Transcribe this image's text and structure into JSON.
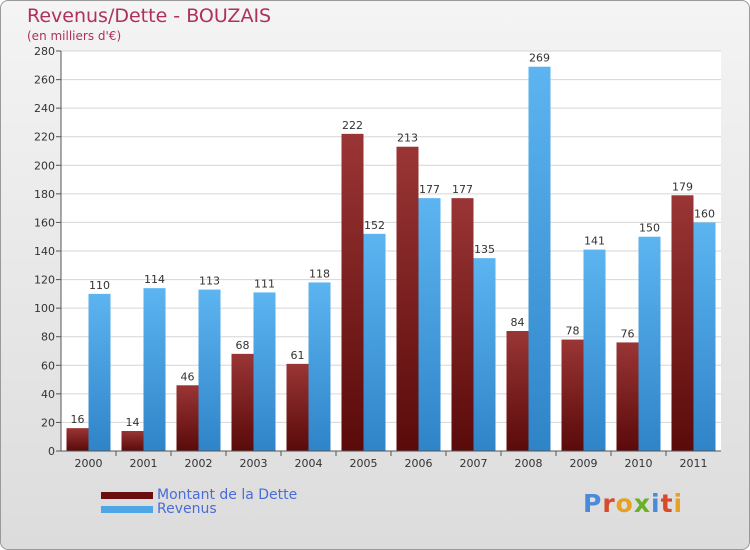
{
  "header": {
    "title": "Revenus/Dette - BOUZAIS",
    "subtitle": "(en milliers d'€)"
  },
  "colors": {
    "dette": "#7a1c1c",
    "revenus": "#4ea6e6"
  },
  "chart_data": {
    "type": "bar",
    "categories": [
      "2000",
      "2001",
      "2002",
      "2003",
      "2004",
      "2005",
      "2006",
      "2007",
      "2008",
      "2009",
      "2010",
      "2011"
    ],
    "series": [
      {
        "name": "Montant de la Dette",
        "values": [
          16,
          14,
          46,
          68,
          61,
          222,
          213,
          177,
          84,
          78,
          76,
          179
        ]
      },
      {
        "name": "Revenus",
        "values": [
          110,
          114,
          113,
          111,
          118,
          152,
          177,
          135,
          269,
          141,
          150,
          160
        ]
      }
    ],
    "ylim": [
      0,
      280
    ],
    "ytick_step": 20,
    "grid": true,
    "legend": "bottom-left"
  },
  "legend": {
    "items": [
      "Montant de la Dette",
      "Revenus"
    ]
  },
  "logo": {
    "text": "Proxiti",
    "colors": [
      "#4a8ad8",
      "#d84a2a",
      "#e8a020",
      "#6ab02a",
      "#4a8ad8",
      "#d84a2a",
      "#e8a020"
    ]
  }
}
